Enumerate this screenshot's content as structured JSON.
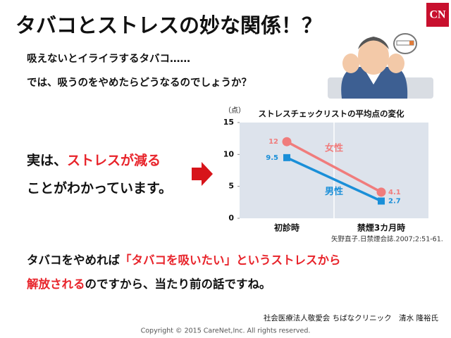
{
  "slide": {
    "title": "タバコとストレスの妙な関係！？",
    "logo": "CN",
    "intro": [
      "吸えないとイライラするタバコ……",
      "では、吸うのをやめたらどうなるのでしょうか？"
    ],
    "point": [
      [
        "実は、",
        "ストレスが減る"
      ],
      [
        "ことがわかっています。"
      ]
    ],
    "conclusion": [
      [
        "タバコをやめれば",
        "「タバコを吸いたい」というストレスから"
      ],
      [
        "解放される",
        "のですから、当たり前の話ですね。"
      ]
    ],
    "source": "矢野直子.日禁煙会誌.2007;2:51-61.",
    "credit": "社会医療法人敬愛会 ちばなクリニック　清水 隆裕氏",
    "copyright": "Copyright © 2015 CareNet,Inc. All rights reserved."
  },
  "chart_data": {
    "type": "line",
    "title": "ストレスチェックリストの平均点の変化",
    "y_label": "（点）",
    "categories": [
      "初診時",
      "禁煙3カ月時"
    ],
    "series": [
      {
        "name": "女性",
        "color": "#f07c7c",
        "marker": "circle",
        "values": [
          12,
          4.1
        ]
      },
      {
        "name": "男性",
        "color": "#1a8fd8",
        "marker": "square",
        "values": [
          9.5,
          2.7
        ]
      }
    ],
    "ylim": [
      0,
      15
    ],
    "yticks": [
      0,
      5,
      10,
      15
    ],
    "grid": true
  }
}
